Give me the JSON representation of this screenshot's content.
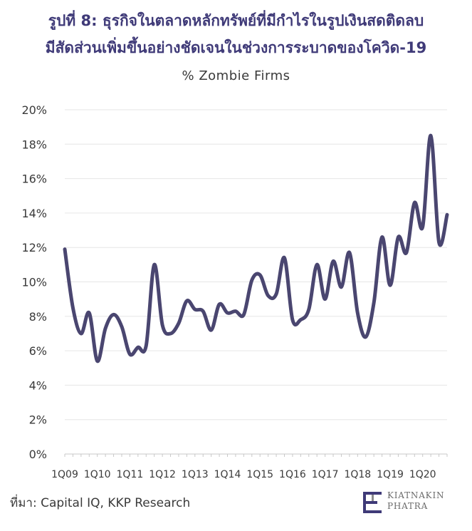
{
  "header": {
    "title_line1": "รูปที่ 8: ธุรกิจในตลาดหลักทรัพย์ที่มีกำไรในรูปเงินสดติดลบ",
    "title_line2": "มีสัดส่วนเพิ่มขึ้นอย่างชัดเจนในช่วงการระบาดของโควิด-19"
  },
  "footer": {
    "source": "ที่มา: Capital IQ, KKP Research",
    "logo_line1": "KIATNAKIN",
    "logo_line2": "PHATRA"
  },
  "colors": {
    "line": "#4a4670",
    "title": "#3f3a78",
    "grid": "#e6e6e6",
    "axis": "#c8c8c8"
  },
  "chart_data": {
    "type": "line",
    "title": "% Zombie Firms",
    "ylim": [
      0,
      20
    ],
    "y_ticks": [
      "0%",
      "2%",
      "4%",
      "6%",
      "8%",
      "10%",
      "12%",
      "14%",
      "16%",
      "18%",
      "20%"
    ],
    "x_ticks": [
      "1Q09",
      "1Q10",
      "1Q11",
      "1Q12",
      "1Q13",
      "1Q14",
      "1Q15",
      "1Q16",
      "1Q17",
      "1Q18",
      "1Q19",
      "1Q20"
    ],
    "grid": true,
    "series": [
      {
        "name": "",
        "x": [
          "1Q09",
          "2Q09",
          "3Q09",
          "4Q09",
          "1Q10",
          "2Q10",
          "3Q10",
          "4Q10",
          "1Q11",
          "2Q11",
          "3Q11",
          "4Q11",
          "1Q12",
          "2Q12",
          "3Q12",
          "4Q12",
          "1Q13",
          "2Q13",
          "3Q13",
          "4Q13",
          "1Q14",
          "2Q14",
          "3Q14",
          "4Q14",
          "1Q15",
          "2Q15",
          "3Q15",
          "4Q15",
          "1Q16",
          "2Q16",
          "3Q16",
          "4Q16",
          "1Q17",
          "2Q17",
          "3Q17",
          "4Q17",
          "1Q18",
          "2Q18",
          "3Q18",
          "4Q18",
          "1Q19",
          "2Q19",
          "3Q19",
          "4Q19",
          "1Q20",
          "2Q20",
          "3Q20",
          "4Q20"
        ],
        "values": [
          11.9,
          8.5,
          7.0,
          8.2,
          5.4,
          7.3,
          8.1,
          7.4,
          5.8,
          6.2,
          6.3,
          11.0,
          7.5,
          7.0,
          7.6,
          8.9,
          8.4,
          8.3,
          7.2,
          8.7,
          8.2,
          8.3,
          8.1,
          10.1,
          10.4,
          9.2,
          9.3,
          11.4,
          7.8,
          7.8,
          8.4,
          11.0,
          9.0,
          11.2,
          9.7,
          11.7,
          8.2,
          6.8,
          8.8,
          12.6,
          9.8,
          12.6,
          11.7,
          14.6,
          13.2,
          18.5,
          12.3,
          13.9
        ]
      }
    ]
  }
}
